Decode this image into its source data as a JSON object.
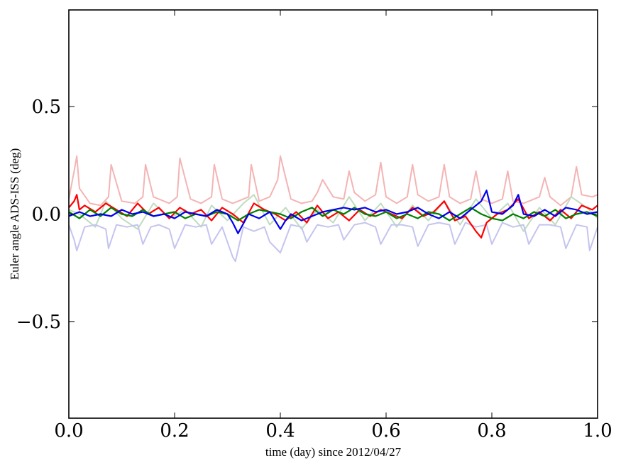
{
  "chart_data": {
    "type": "line",
    "title": "",
    "xlabel": "time (day) since 2012/04/27",
    "ylabel": "Euler angle ADS-ISS (deg)",
    "xlim": [
      0.0,
      1.0
    ],
    "ylim": [
      -0.95,
      0.95
    ],
    "x_ticks": [
      0.0,
      0.2,
      0.4,
      0.6,
      0.8,
      1.0
    ],
    "x_tick_labels": [
      "0.0",
      "0.2",
      "0.4",
      "0.6",
      "0.8",
      "1.0"
    ],
    "y_ticks": [
      -0.5,
      0.0,
      0.5
    ],
    "y_tick_labels": [
      "−0.5",
      "0.0",
      "0.5"
    ],
    "grid": false,
    "legend": "none",
    "series": [
      {
        "color": "#f4b4b4",
        "style": "faint",
        "x": [
          0.0,
          0.01,
          0.015,
          0.02,
          0.04,
          0.06,
          0.075,
          0.08,
          0.1,
          0.125,
          0.14,
          0.145,
          0.16,
          0.19,
          0.205,
          0.21,
          0.23,
          0.25,
          0.27,
          0.275,
          0.29,
          0.31,
          0.34,
          0.345,
          0.36,
          0.38,
          0.395,
          0.4,
          0.42,
          0.44,
          0.46,
          0.47,
          0.48,
          0.5,
          0.52,
          0.53,
          0.54,
          0.56,
          0.58,
          0.59,
          0.6,
          0.62,
          0.64,
          0.65,
          0.66,
          0.68,
          0.7,
          0.71,
          0.72,
          0.74,
          0.76,
          0.77,
          0.78,
          0.8,
          0.82,
          0.83,
          0.84,
          0.86,
          0.89,
          0.9,
          0.91,
          0.93,
          0.95,
          0.96,
          0.97,
          0.99,
          1.0
        ],
        "y": [
          0.07,
          0.2,
          0.27,
          0.12,
          0.05,
          0.04,
          0.08,
          0.23,
          0.06,
          0.05,
          0.08,
          0.23,
          0.08,
          0.05,
          0.08,
          0.26,
          0.07,
          0.05,
          0.08,
          0.23,
          0.07,
          0.05,
          0.08,
          0.23,
          0.06,
          0.08,
          0.16,
          0.27,
          0.07,
          0.05,
          0.06,
          0.1,
          0.16,
          0.08,
          0.07,
          0.2,
          0.1,
          0.06,
          0.09,
          0.24,
          0.08,
          0.05,
          0.08,
          0.23,
          0.09,
          0.06,
          0.08,
          0.23,
          0.08,
          0.05,
          0.07,
          0.2,
          0.07,
          0.05,
          0.07,
          0.2,
          0.06,
          0.05,
          0.08,
          0.17,
          0.08,
          0.04,
          0.08,
          0.22,
          0.09,
          0.08,
          0.09
        ]
      },
      {
        "color": "#bfdcbf",
        "style": "faint",
        "x": [
          0.0,
          0.02,
          0.05,
          0.07,
          0.1,
          0.13,
          0.16,
          0.19,
          0.22,
          0.25,
          0.27,
          0.3,
          0.33,
          0.35,
          0.38,
          0.41,
          0.44,
          0.47,
          0.5,
          0.53,
          0.56,
          0.59,
          0.62,
          0.65,
          0.68,
          0.71,
          0.74,
          0.77,
          0.8,
          0.83,
          0.86,
          0.89,
          0.92,
          0.95,
          0.98,
          1.0
        ],
        "y": [
          0.02,
          0.0,
          -0.06,
          0.06,
          -0.02,
          -0.07,
          0.05,
          -0.02,
          0.02,
          -0.06,
          0.04,
          -0.03,
          0.05,
          0.09,
          -0.05,
          0.03,
          -0.07,
          0.02,
          -0.04,
          0.08,
          -0.03,
          0.05,
          -0.06,
          0.04,
          -0.03,
          0.06,
          -0.05,
          0.07,
          -0.02,
          0.05,
          -0.08,
          0.03,
          -0.05,
          0.08,
          0.03,
          -0.02
        ]
      },
      {
        "color": "#c4c4f0",
        "style": "faint",
        "x": [
          0.0,
          0.01,
          0.015,
          0.03,
          0.05,
          0.07,
          0.075,
          0.09,
          0.11,
          0.13,
          0.14,
          0.155,
          0.17,
          0.19,
          0.2,
          0.22,
          0.24,
          0.26,
          0.27,
          0.29,
          0.31,
          0.315,
          0.33,
          0.35,
          0.37,
          0.38,
          0.4,
          0.42,
          0.44,
          0.45,
          0.47,
          0.49,
          0.51,
          0.52,
          0.54,
          0.56,
          0.58,
          0.59,
          0.61,
          0.63,
          0.65,
          0.66,
          0.68,
          0.7,
          0.72,
          0.73,
          0.75,
          0.77,
          0.79,
          0.8,
          0.82,
          0.84,
          0.86,
          0.87,
          0.89,
          0.91,
          0.93,
          0.94,
          0.96,
          0.98,
          0.985,
          1.0
        ],
        "y": [
          -0.05,
          -0.12,
          -0.17,
          -0.06,
          -0.05,
          -0.07,
          -0.16,
          -0.05,
          -0.06,
          -0.05,
          -0.14,
          -0.06,
          -0.05,
          -0.07,
          -0.16,
          -0.05,
          -0.06,
          -0.05,
          -0.14,
          -0.06,
          -0.2,
          -0.22,
          -0.06,
          -0.08,
          -0.06,
          -0.13,
          -0.18,
          -0.05,
          -0.06,
          -0.13,
          -0.05,
          -0.06,
          -0.05,
          -0.12,
          -0.05,
          -0.04,
          -0.06,
          -0.14,
          -0.05,
          -0.05,
          -0.06,
          -0.15,
          -0.05,
          -0.04,
          -0.05,
          -0.14,
          -0.04,
          -0.06,
          -0.05,
          -0.14,
          -0.04,
          -0.06,
          -0.05,
          -0.14,
          -0.05,
          -0.05,
          -0.06,
          -0.16,
          -0.05,
          -0.06,
          -0.17,
          -0.06
        ]
      },
      {
        "color": "#ff0000",
        "style": "solid",
        "x": [
          0.0,
          0.01,
          0.015,
          0.02,
          0.03,
          0.05,
          0.07,
          0.09,
          0.11,
          0.13,
          0.15,
          0.17,
          0.19,
          0.21,
          0.23,
          0.25,
          0.27,
          0.29,
          0.31,
          0.33,
          0.35,
          0.37,
          0.39,
          0.41,
          0.43,
          0.45,
          0.47,
          0.49,
          0.51,
          0.53,
          0.55,
          0.57,
          0.59,
          0.61,
          0.63,
          0.65,
          0.67,
          0.69,
          0.71,
          0.73,
          0.75,
          0.77,
          0.78,
          0.79,
          0.81,
          0.83,
          0.85,
          0.87,
          0.89,
          0.91,
          0.93,
          0.95,
          0.97,
          0.99,
          1.0
        ],
        "y": [
          0.03,
          0.06,
          0.09,
          0.02,
          0.04,
          0.01,
          0.05,
          0.02,
          -0.01,
          0.05,
          0.0,
          0.03,
          -0.02,
          0.03,
          0.0,
          0.02,
          -0.03,
          0.03,
          0.0,
          -0.04,
          0.05,
          0.02,
          0.0,
          -0.03,
          0.01,
          -0.04,
          0.04,
          -0.02,
          0.01,
          -0.03,
          0.02,
          -0.01,
          0.02,
          0.0,
          -0.02,
          0.03,
          -0.01,
          0.01,
          0.06,
          -0.03,
          -0.01,
          -0.08,
          -0.11,
          -0.04,
          0.0,
          0.02,
          0.07,
          -0.02,
          0.01,
          -0.03,
          0.02,
          -0.02,
          0.04,
          0.02,
          0.04
        ]
      },
      {
        "color": "#008000",
        "style": "solid",
        "x": [
          0.0,
          0.02,
          0.04,
          0.06,
          0.08,
          0.1,
          0.12,
          0.14,
          0.16,
          0.18,
          0.2,
          0.22,
          0.24,
          0.26,
          0.28,
          0.3,
          0.32,
          0.34,
          0.36,
          0.38,
          0.4,
          0.42,
          0.44,
          0.46,
          0.48,
          0.5,
          0.52,
          0.54,
          0.56,
          0.58,
          0.6,
          0.62,
          0.64,
          0.66,
          0.68,
          0.7,
          0.72,
          0.74,
          0.76,
          0.78,
          0.8,
          0.82,
          0.84,
          0.86,
          0.88,
          0.9,
          0.92,
          0.94,
          0.96,
          0.98,
          1.0
        ],
        "y": [
          0.01,
          -0.02,
          0.02,
          -0.01,
          0.03,
          0.0,
          -0.01,
          0.02,
          -0.01,
          0.0,
          0.01,
          -0.02,
          0.0,
          -0.01,
          0.01,
          0.0,
          -0.03,
          0.0,
          0.02,
          0.01,
          0.0,
          -0.02,
          0.01,
          0.03,
          -0.01,
          0.02,
          0.0,
          0.03,
          0.0,
          -0.01,
          0.01,
          -0.02,
          0.0,
          -0.02,
          0.01,
          0.0,
          -0.03,
          0.0,
          0.03,
          0.0,
          -0.02,
          -0.03,
          0.0,
          -0.02,
          0.01,
          -0.01,
          0.02,
          -0.02,
          0.0,
          0.01,
          -0.01
        ]
      },
      {
        "color": "#0000ee",
        "style": "solid",
        "x": [
          0.0,
          0.02,
          0.04,
          0.06,
          0.08,
          0.1,
          0.12,
          0.14,
          0.16,
          0.18,
          0.2,
          0.22,
          0.24,
          0.26,
          0.28,
          0.3,
          0.31,
          0.32,
          0.34,
          0.36,
          0.38,
          0.4,
          0.41,
          0.42,
          0.44,
          0.46,
          0.48,
          0.5,
          0.52,
          0.54,
          0.56,
          0.58,
          0.6,
          0.62,
          0.64,
          0.66,
          0.68,
          0.7,
          0.72,
          0.74,
          0.76,
          0.78,
          0.79,
          0.8,
          0.82,
          0.84,
          0.85,
          0.86,
          0.88,
          0.9,
          0.92,
          0.94,
          0.96,
          0.98,
          1.0
        ],
        "y": [
          -0.01,
          0.01,
          -0.01,
          0.0,
          -0.01,
          0.02,
          0.0,
          0.01,
          -0.01,
          0.0,
          -0.02,
          0.01,
          0.0,
          -0.01,
          0.02,
          0.0,
          -0.04,
          -0.09,
          0.0,
          -0.02,
          0.01,
          -0.07,
          -0.03,
          0.0,
          -0.03,
          -0.01,
          0.01,
          0.02,
          0.03,
          0.02,
          0.03,
          0.01,
          0.02,
          0.0,
          0.01,
          0.03,
          0.0,
          -0.02,
          0.01,
          -0.02,
          0.02,
          0.06,
          0.11,
          0.01,
          0.0,
          0.04,
          0.09,
          0.0,
          -0.01,
          0.02,
          -0.01,
          0.03,
          0.02,
          0.0,
          0.01
        ]
      }
    ]
  }
}
